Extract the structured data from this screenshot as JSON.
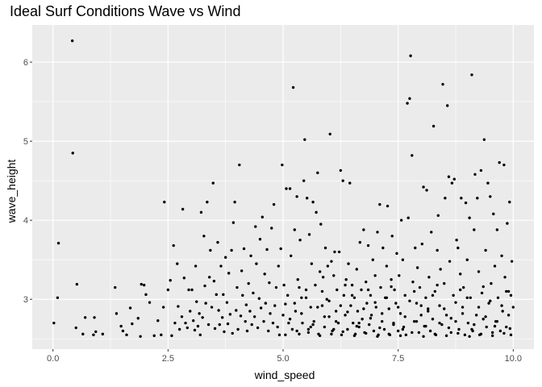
{
  "chart_data": {
    "type": "scatter",
    "title": "Ideal Surf Conditions Wave vs Wind",
    "xlabel": "wind_speed",
    "ylabel": "wave_height",
    "xlim": [
      -0.45,
      10.45
    ],
    "ylim": [
      2.37,
      6.47
    ],
    "x_ticks": [
      0,
      2.5,
      5,
      7.5,
      10
    ],
    "x_tick_labels": [
      "0.0",
      "2.5",
      "5.0",
      "7.5",
      "10.0"
    ],
    "y_ticks": [
      3,
      4,
      5,
      6
    ],
    "y_tick_labels": [
      "3",
      "4",
      "5",
      "6"
    ],
    "grid": true,
    "background": "#ebebeb",
    "grid_major_color": "#ffffff",
    "point_color": "#000000",
    "points": [
      [
        0.02,
        2.7
      ],
      [
        0.1,
        3.02
      ],
      [
        0.12,
        3.71
      ],
      [
        0.42,
        6.27
      ],
      [
        0.43,
        4.85
      ],
      [
        0.5,
        2.64
      ],
      [
        0.52,
        3.19
      ],
      [
        0.65,
        2.56
      ],
      [
        0.7,
        2.77
      ],
      [
        0.88,
        2.55
      ],
      [
        0.9,
        2.77
      ],
      [
        0.93,
        2.59
      ],
      [
        1.08,
        2.56
      ],
      [
        1.35,
        3.15
      ],
      [
        1.38,
        2.82
      ],
      [
        1.48,
        2.66
      ],
      [
        1.52,
        2.6
      ],
      [
        1.6,
        2.55
      ],
      [
        1.68,
        2.89
      ],
      [
        1.72,
        2.69
      ],
      [
        1.85,
        2.76
      ],
      [
        1.9,
        2.53
      ],
      [
        1.92,
        3.19
      ],
      [
        1.98,
        3.18
      ],
      [
        2.02,
        3.06
      ],
      [
        2.1,
        2.96
      ],
      [
        2.2,
        2.54
      ],
      [
        2.28,
        2.73
      ],
      [
        2.35,
        2.55
      ],
      [
        2.4,
        2.9
      ],
      [
        2.42,
        4.23
      ],
      [
        2.5,
        3.12
      ],
      [
        2.55,
        3.24
      ],
      [
        2.58,
        2.54
      ],
      [
        2.62,
        3.68
      ],
      [
        2.65,
        2.7
      ],
      [
        2.7,
        3.45
      ],
      [
        2.72,
        2.91
      ],
      [
        2.75,
        2.62
      ],
      [
        2.8,
        2.78
      ],
      [
        2.82,
        4.14
      ],
      [
        2.85,
        3.27
      ],
      [
        2.88,
        2.7
      ],
      [
        2.92,
        2.64
      ],
      [
        2.95,
        3.12
      ],
      [
        2.98,
        2.85
      ],
      [
        3.02,
        3.12
      ],
      [
        3.05,
        2.73
      ],
      [
        3.08,
        2.61
      ],
      [
        3.1,
        3.42
      ],
      [
        3.12,
        2.97
      ],
      [
        3.15,
        2.66
      ],
      [
        3.18,
        2.82
      ],
      [
        3.2,
        2.55
      ],
      [
        3.22,
        4.1
      ],
      [
        3.25,
        2.77
      ],
      [
        3.28,
        3.8
      ],
      [
        3.3,
        3.17
      ],
      [
        3.32,
        2.95
      ],
      [
        3.35,
        4.23
      ],
      [
        3.38,
        2.68
      ],
      [
        3.4,
        3.28
      ],
      [
        3.42,
        3.62
      ],
      [
        3.45,
        2.9
      ],
      [
        3.48,
        4.47
      ],
      [
        3.5,
        3.23
      ],
      [
        3.52,
        2.63
      ],
      [
        3.55,
        3.06
      ],
      [
        3.58,
        3.72
      ],
      [
        3.6,
        2.86
      ],
      [
        3.62,
        2.68
      ],
      [
        3.65,
        3.42
      ],
      [
        3.68,
        2.77
      ],
      [
        3.7,
        3.06
      ],
      [
        3.72,
        2.59
      ],
      [
        3.75,
        3.53
      ],
      [
        3.78,
        2.96
      ],
      [
        3.8,
        2.69
      ],
      [
        3.82,
        3.33
      ],
      [
        3.85,
        2.81
      ],
      [
        3.88,
        3.62
      ],
      [
        3.9,
        2.57
      ],
      [
        3.92,
        3.97
      ],
      [
        3.95,
        4.23
      ],
      [
        3.98,
        2.86
      ],
      [
        4.0,
        3.15
      ],
      [
        4.02,
        2.62
      ],
      [
        4.05,
        4.7
      ],
      [
        4.08,
        2.79
      ],
      [
        4.1,
        3.36
      ],
      [
        4.12,
        3.05
      ],
      [
        4.15,
        3.64
      ],
      [
        4.18,
        2.72
      ],
      [
        4.2,
        2.93
      ],
      [
        4.22,
        2.6
      ],
      [
        4.25,
        3.2
      ],
      [
        4.28,
        2.85
      ],
      [
        4.3,
        3.55
      ],
      [
        4.32,
        2.68
      ],
      [
        4.35,
        3.08
      ],
      [
        4.38,
        2.78
      ],
      [
        4.4,
        3.92
      ],
      [
        4.42,
        3.45
      ],
      [
        4.45,
        2.64
      ],
      [
        4.48,
        3.01
      ],
      [
        4.5,
        3.76
      ],
      [
        4.52,
        2.89
      ],
      [
        4.55,
        4.04
      ],
      [
        4.58,
        2.72
      ],
      [
        4.6,
        3.32
      ],
      [
        4.62,
        2.95
      ],
      [
        4.65,
        3.63
      ],
      [
        4.68,
        2.6
      ],
      [
        4.7,
        3.21
      ],
      [
        4.72,
        2.82
      ],
      [
        4.75,
        3.9
      ],
      [
        4.78,
        2.7
      ],
      [
        4.8,
        4.2
      ],
      [
        4.82,
        2.92
      ],
      [
        4.85,
        3.15
      ],
      [
        4.88,
        2.65
      ],
      [
        4.9,
        3.42
      ],
      [
        4.92,
        2.55
      ],
      [
        4.95,
        3.64
      ],
      [
        4.98,
        4.7
      ],
      [
        5.0,
        2.8
      ],
      [
        5.02,
        3.18
      ],
      [
        5.05,
        2.94
      ],
      [
        5.07,
        4.4
      ],
      [
        5.1,
        3.05
      ],
      [
        5.12,
        2.7
      ],
      [
        5.15,
        4.4
      ],
      [
        5.17,
        3.55
      ],
      [
        5.2,
        2.62
      ],
      [
        5.22,
        5.68
      ],
      [
        5.25,
        3.88
      ],
      [
        5.27,
        2.85
      ],
      [
        5.3,
        4.3
      ],
      [
        5.32,
        3.25
      ],
      [
        5.35,
        2.56
      ],
      [
        5.37,
        3.75
      ],
      [
        5.4,
        3.02
      ],
      [
        5.42,
        2.7
      ],
      [
        5.45,
        4.5
      ],
      [
        5.47,
        5.02
      ],
      [
        5.5,
        3.12
      ],
      [
        5.52,
        4.28
      ],
      [
        5.55,
        2.62
      ],
      [
        5.57,
        3.82
      ],
      [
        5.6,
        2.9
      ],
      [
        5.62,
        3.45
      ],
      [
        5.65,
        4.23
      ],
      [
        5.67,
        2.72
      ],
      [
        5.7,
        3.18
      ],
      [
        5.72,
        4.1
      ],
      [
        5.75,
        4.6
      ],
      [
        5.77,
        2.56
      ],
      [
        5.8,
        3.35
      ],
      [
        5.82,
        3.95
      ],
      [
        5.85,
        2.92
      ],
      [
        5.87,
        3.28
      ],
      [
        5.9,
        2.65
      ],
      [
        5.92,
        3.65
      ],
      [
        5.95,
        3.0
      ],
      [
        5.97,
        3.42
      ],
      [
        6.0,
        2.78
      ],
      [
        6.02,
        5.09
      ],
      [
        6.05,
        3.48
      ],
      [
        6.07,
        2.6
      ],
      [
        6.1,
        3.3
      ],
      [
        6.12,
        3.6
      ],
      [
        6.15,
        2.85
      ],
      [
        6.17,
        3.12
      ],
      [
        6.2,
        2.7
      ],
      [
        6.22,
        3.6
      ],
      [
        6.25,
        4.63
      ],
      [
        6.27,
        2.55
      ],
      [
        6.3,
        4.5
      ],
      [
        6.32,
        3.05
      ],
      [
        6.35,
        2.8
      ],
      [
        6.37,
        3.25
      ],
      [
        6.4,
        2.62
      ],
      [
        6.42,
        3.45
      ],
      [
        6.45,
        4.47
      ],
      [
        6.47,
        2.92
      ],
      [
        6.5,
        3.18
      ],
      [
        6.52,
        2.7
      ],
      [
        6.55,
        3.02
      ],
      [
        6.57,
        2.56
      ],
      [
        6.6,
        3.38
      ],
      [
        6.62,
        2.85
      ],
      [
        6.65,
        2.65
      ],
      [
        6.67,
        3.72
      ],
      [
        6.7,
        3.12
      ],
      [
        6.72,
        2.75
      ],
      [
        6.75,
        3.88
      ],
      [
        6.77,
        2.58
      ],
      [
        6.8,
        3.22
      ],
      [
        6.82,
        2.95
      ],
      [
        6.85,
        3.68
      ],
      [
        6.87,
        2.68
      ],
      [
        6.9,
        3.05
      ],
      [
        6.92,
        2.8
      ],
      [
        6.95,
        3.5
      ],
      [
        6.97,
        2.6
      ],
      [
        7.0,
        3.3
      ],
      [
        7.02,
        2.9
      ],
      [
        7.05,
        3.85
      ],
      [
        7.07,
        2.55
      ],
      [
        7.1,
        4.2
      ],
      [
        7.12,
        3.15
      ],
      [
        7.15,
        2.72
      ],
      [
        7.17,
        3.65
      ],
      [
        7.2,
        2.62
      ],
      [
        7.22,
        3.02
      ],
      [
        7.25,
        3.42
      ],
      [
        7.27,
        4.18
      ],
      [
        7.3,
        2.88
      ],
      [
        7.32,
        2.55
      ],
      [
        7.35,
        3.25
      ],
      [
        7.37,
        3.8
      ],
      [
        7.4,
        2.7
      ],
      [
        7.42,
        3.12
      ],
      [
        7.45,
        2.95
      ],
      [
        7.47,
        3.58
      ],
      [
        7.5,
        2.6
      ],
      [
        7.52,
        3.3
      ],
      [
        7.55,
        2.82
      ],
      [
        7.57,
        4.0
      ],
      [
        7.6,
        3.5
      ],
      [
        7.62,
        2.65
      ],
      [
        7.65,
        3.05
      ],
      [
        7.67,
        2.55
      ],
      [
        7.7,
        5.48
      ],
      [
        7.72,
        4.03
      ],
      [
        7.75,
        5.54
      ],
      [
        7.77,
        6.08
      ],
      [
        7.8,
        4.82
      ],
      [
        7.82,
        3.22
      ],
      [
        7.85,
        2.72
      ],
      [
        7.87,
        3.65
      ],
      [
        7.9,
        2.95
      ],
      [
        7.92,
        3.4
      ],
      [
        7.95,
        2.58
      ],
      [
        7.97,
        3.15
      ],
      [
        8.0,
        2.8
      ],
      [
        8.02,
        3.7
      ],
      [
        8.05,
        4.42
      ],
      [
        8.07,
        2.66
      ],
      [
        8.1,
        3.02
      ],
      [
        8.12,
        4.38
      ],
      [
        8.15,
        2.88
      ],
      [
        8.17,
        3.28
      ],
      [
        8.2,
        2.6
      ],
      [
        8.22,
        3.85
      ],
      [
        8.25,
        2.75
      ],
      [
        8.27,
        5.19
      ],
      [
        8.3,
        3.1
      ],
      [
        8.32,
        2.55
      ],
      [
        8.35,
        3.62
      ],
      [
        8.37,
        4.06
      ],
      [
        8.4,
        2.92
      ],
      [
        8.42,
        3.38
      ],
      [
        8.45,
        2.68
      ],
      [
        8.47,
        5.72
      ],
      [
        8.5,
        3.2
      ],
      [
        8.52,
        4.28
      ],
      [
        8.55,
        2.8
      ],
      [
        8.57,
        5.45
      ],
      [
        8.6,
        4.55
      ],
      [
        8.62,
        3.48
      ],
      [
        8.65,
        2.58
      ],
      [
        8.67,
        4.47
      ],
      [
        8.7,
        3.05
      ],
      [
        8.72,
        4.52
      ],
      [
        8.75,
        2.72
      ],
      [
        8.77,
        3.75
      ],
      [
        8.8,
        3.65
      ],
      [
        8.82,
        2.62
      ],
      [
        8.85,
        3.32
      ],
      [
        8.87,
        4.28
      ],
      [
        8.9,
        2.9
      ],
      [
        8.92,
        3.15
      ],
      [
        8.95,
        2.55
      ],
      [
        8.97,
        4.22
      ],
      [
        9.0,
        3.5
      ],
      [
        9.02,
        2.7
      ],
      [
        9.05,
        4.03
      ],
      [
        9.07,
        3.02
      ],
      [
        9.1,
        5.84
      ],
      [
        9.12,
        2.6
      ],
      [
        9.15,
        3.88
      ],
      [
        9.17,
        4.58
      ],
      [
        9.2,
        2.8
      ],
      [
        9.22,
        4.28
      ],
      [
        9.25,
        3.35
      ],
      [
        9.27,
        2.55
      ],
      [
        9.3,
        4.63
      ],
      [
        9.32,
        3.08
      ],
      [
        9.35,
        2.75
      ],
      [
        9.37,
        5.02
      ],
      [
        9.4,
        3.62
      ],
      [
        9.42,
        2.65
      ],
      [
        9.45,
        4.47
      ],
      [
        9.47,
        2.95
      ],
      [
        9.5,
        4.3
      ],
      [
        9.52,
        3.2
      ],
      [
        9.55,
        2.58
      ],
      [
        9.57,
        4.08
      ],
      [
        9.6,
        3.42
      ],
      [
        9.62,
        2.72
      ],
      [
        9.65,
        3.88
      ],
      [
        9.67,
        3.02
      ],
      [
        9.7,
        4.73
      ],
      [
        9.72,
        2.6
      ],
      [
        9.75,
        3.55
      ],
      [
        9.77,
        2.85
      ],
      [
        9.8,
        4.7
      ],
      [
        9.82,
        3.28
      ],
      [
        9.85,
        2.65
      ],
      [
        9.87,
        3.96
      ],
      [
        9.9,
        3.1
      ],
      [
        9.92,
        4.23
      ],
      [
        9.95,
        2.55
      ],
      [
        9.97,
        3.48
      ],
      [
        10.0,
        2.9
      ],
      [
        5.05,
        2.55
      ],
      [
        5.3,
        2.6
      ],
      [
        5.55,
        2.58
      ],
      [
        5.8,
        2.54
      ],
      [
        6.05,
        2.56
      ],
      [
        6.3,
        2.59
      ],
      [
        6.55,
        2.54
      ],
      [
        6.8,
        2.57
      ],
      [
        7.05,
        2.53
      ],
      [
        7.3,
        2.56
      ],
      [
        7.55,
        2.54
      ],
      [
        7.8,
        2.58
      ],
      [
        8.05,
        2.53
      ],
      [
        8.3,
        2.56
      ],
      [
        8.55,
        2.54
      ],
      [
        8.8,
        2.57
      ],
      [
        9.05,
        2.53
      ],
      [
        9.3,
        2.56
      ],
      [
        9.55,
        2.54
      ],
      [
        9.8,
        2.57
      ],
      [
        5.15,
        2.75
      ],
      [
        5.4,
        2.82
      ],
      [
        5.65,
        2.68
      ],
      [
        5.9,
        2.78
      ],
      [
        6.15,
        2.72
      ],
      [
        6.4,
        2.84
      ],
      [
        6.65,
        2.7
      ],
      [
        6.9,
        2.76
      ],
      [
        7.15,
        2.82
      ],
      [
        7.4,
        2.68
      ],
      [
        7.65,
        2.78
      ],
      [
        7.9,
        2.72
      ],
      [
        8.15,
        2.85
      ],
      [
        8.4,
        2.7
      ],
      [
        8.65,
        2.76
      ],
      [
        8.9,
        2.82
      ],
      [
        9.15,
        2.68
      ],
      [
        9.4,
        2.78
      ],
      [
        9.65,
        2.72
      ],
      [
        9.9,
        2.8
      ],
      [
        5.25,
        2.95
      ],
      [
        5.5,
        3.02
      ],
      [
        5.75,
        2.9
      ],
      [
        6.0,
        2.98
      ],
      [
        6.25,
        2.92
      ],
      [
        6.5,
        3.05
      ],
      [
        6.75,
        2.88
      ],
      [
        7.0,
        2.96
      ],
      [
        7.25,
        3.02
      ],
      [
        7.5,
        2.9
      ],
      [
        7.75,
        2.98
      ],
      [
        8.0,
        2.92
      ],
      [
        8.25,
        3.05
      ],
      [
        8.5,
        2.88
      ],
      [
        8.75,
        2.96
      ],
      [
        9.0,
        3.02
      ],
      [
        9.25,
        2.9
      ],
      [
        9.5,
        2.98
      ],
      [
        9.75,
        2.92
      ],
      [
        9.95,
        3.05
      ],
      [
        5.35,
        3.15
      ],
      [
        5.6,
        2.65
      ],
      [
        5.85,
        3.1
      ],
      [
        6.1,
        2.62
      ],
      [
        6.35,
        3.18
      ],
      [
        6.6,
        2.66
      ],
      [
        6.85,
        3.12
      ],
      [
        7.1,
        2.64
      ],
      [
        7.35,
        3.16
      ],
      [
        7.6,
        2.62
      ],
      [
        7.85,
        3.1
      ],
      [
        8.1,
        2.66
      ],
      [
        8.35,
        3.18
      ],
      [
        8.6,
        2.64
      ],
      [
        8.85,
        3.12
      ],
      [
        9.1,
        2.62
      ],
      [
        9.35,
        3.16
      ],
      [
        9.6,
        2.66
      ],
      [
        9.85,
        3.1
      ],
      [
        9.93,
        2.63
      ]
    ]
  }
}
